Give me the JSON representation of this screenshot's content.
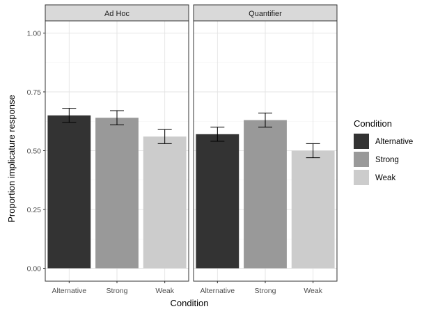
{
  "chart_data": {
    "type": "bar",
    "facets": [
      "Ad Hoc",
      "Quantifier"
    ],
    "categories": [
      "Alternative",
      "Strong",
      "Weak"
    ],
    "series": [
      {
        "facet": "Ad Hoc",
        "values": [
          0.65,
          0.64,
          0.56
        ],
        "error_low": [
          0.62,
          0.61,
          0.53
        ],
        "error_high": [
          0.68,
          0.67,
          0.59
        ]
      },
      {
        "facet": "Quantifier",
        "values": [
          0.57,
          0.63,
          0.5
        ],
        "error_low": [
          0.54,
          0.6,
          0.47
        ],
        "error_high": [
          0.6,
          0.66,
          0.53
        ]
      }
    ],
    "colors": {
      "Alternative": "#333333",
      "Strong": "#999999",
      "Weak": "#cccccc"
    },
    "xlabel": "Condition",
    "ylabel": "Proportion implicature response",
    "ylim": [
      0,
      1.0
    ],
    "yticks": [
      0.0,
      0.25,
      0.5,
      0.75,
      1.0
    ],
    "ytick_labels": [
      "0.00",
      "0.25",
      "0.50",
      "0.75",
      "1.00"
    ],
    "grid": true,
    "legend": {
      "title": "Condition",
      "position": "right",
      "entries": [
        "Alternative",
        "Strong",
        "Weak"
      ]
    }
  }
}
